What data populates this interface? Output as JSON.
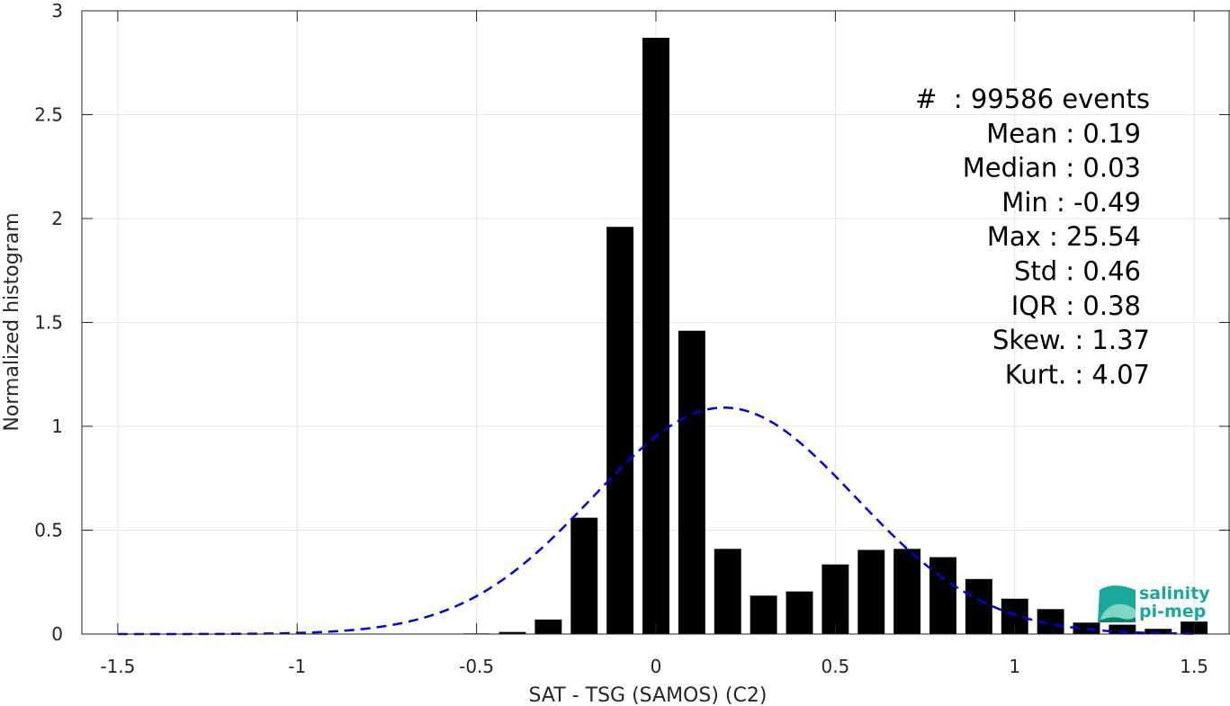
{
  "chart_data": {
    "type": "bar",
    "xlabel": "SAT - TSG (SAMOS) (C2)",
    "ylabel": "Normalized histogram",
    "xlim": [
      -1.6,
      1.6
    ],
    "ylim": [
      0,
      3
    ],
    "xticks": [
      -1.5,
      -1,
      -0.5,
      0,
      0.5,
      1,
      1.5
    ],
    "xtick_labels": [
      "-1.5",
      "-1",
      "-0.5",
      "0",
      "0.5",
      "1",
      "1.5"
    ],
    "yticks": [
      0,
      0.5,
      1,
      1.5,
      2,
      2.5,
      3
    ],
    "ytick_labels": [
      "0",
      "0.5",
      "1",
      "1.5",
      "2",
      "2.5",
      "3"
    ],
    "grid": true,
    "bar_width": 0.075,
    "bars": {
      "x": [
        -0.5,
        -0.4,
        -0.3,
        -0.2,
        -0.1,
        0.0,
        0.1,
        0.2,
        0.3,
        0.4,
        0.5,
        0.6,
        0.7,
        0.8,
        0.9,
        1.0,
        1.1,
        1.2,
        1.3,
        1.4,
        1.5
      ],
      "values": [
        0.003,
        0.01,
        0.07,
        0.56,
        1.96,
        2.87,
        1.46,
        0.41,
        0.185,
        0.205,
        0.335,
        0.405,
        0.41,
        0.37,
        0.265,
        0.17,
        0.12,
        0.055,
        0.045,
        0.025,
        0.06
      ],
      "color": "#000000"
    },
    "fit_curve": {
      "style": "dashed",
      "color": "#0000dd",
      "mean": 0.19,
      "std": 0.365,
      "peak": 1.09,
      "x_range": [
        -1.5,
        1.5
      ]
    },
    "stats": [
      {
        "label": "#  : 99586 events"
      },
      {
        "label": "Mean : 0.19"
      },
      {
        "label": "Median : 0.03"
      },
      {
        "label": "Min : -0.49"
      },
      {
        "label": "Max : 25.54"
      },
      {
        "label": "Std : 0.46"
      },
      {
        "label": "IQR : 0.38"
      },
      {
        "label": "Skew. : 1.37"
      },
      {
        "label": "Kurt. : 4.07"
      }
    ]
  },
  "logo": {
    "line1": "salinity",
    "line2": "pi-mep",
    "colors": [
      "#1aa89a",
      "#7fd6c6",
      "#0e7f74"
    ]
  }
}
